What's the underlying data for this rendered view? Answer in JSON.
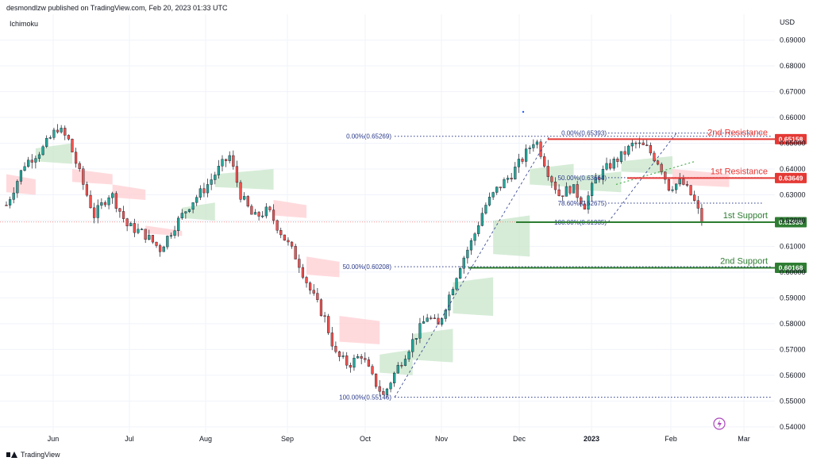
{
  "header": {
    "publisher": "desmondlzw published on TradingView.com, Feb 20, 2023 01:33 UTC",
    "indicator": "Ichimoku",
    "currency": "USD",
    "footer_brand": "TradingView"
  },
  "colors": {
    "up": "#26a69a",
    "down": "#ef5350",
    "wick": "#131722",
    "resistance": "#e53935",
    "support": "#2e7d32",
    "fib": "#2a3a8a",
    "cloud_bull": "#c8e6c9",
    "cloud_bear": "#ffcdd2",
    "grid": "#f0f3fa"
  },
  "chart_data": {
    "type": "candlestick",
    "x_ticks": [
      "Jun",
      "Jul",
      "Aug",
      "Sep",
      "Oct",
      "Nov",
      "Dec",
      "2023",
      "Feb",
      "Mar"
    ],
    "y_axis": {
      "min": 0.5375,
      "max": 0.7,
      "ticks": [
        0.69,
        0.68,
        0.67,
        0.66,
        0.65,
        0.64,
        0.63,
        0.62,
        0.61,
        0.6,
        0.59,
        0.58,
        0.57,
        0.56,
        0.55,
        0.54
      ]
    },
    "y_tick_labels": [
      "0.69000",
      "0.68000",
      "0.67000",
      "0.66000",
      "0.65000",
      "0.64000",
      "0.63000",
      "0.62000",
      "0.61000",
      "0.60000",
      "0.59000",
      "0.58000",
      "0.57000",
      "0.56000",
      "0.55000",
      "0.54000"
    ],
    "price_anchors": [
      {
        "t": 0,
        "p": 0.626
      },
      {
        "t": 1,
        "p": 0.642
      },
      {
        "t": 2,
        "p": 0.648
      },
      {
        "t": 2.8,
        "p": 0.656
      },
      {
        "t": 3.4,
        "p": 0.651
      },
      {
        "t": 4.2,
        "p": 0.634
      },
      {
        "t": 4.8,
        "p": 0.622
      },
      {
        "t": 5.7,
        "p": 0.631
      },
      {
        "t": 6.6,
        "p": 0.618
      },
      {
        "t": 7.5,
        "p": 0.615
      },
      {
        "t": 8.4,
        "p": 0.609
      },
      {
        "t": 9.2,
        "p": 0.618
      },
      {
        "t": 10.1,
        "p": 0.627
      },
      {
        "t": 10.9,
        "p": 0.633
      },
      {
        "t": 11.7,
        "p": 0.641
      },
      {
        "t": 12.2,
        "p": 0.645
      },
      {
        "t": 12.8,
        "p": 0.63
      },
      {
        "t": 13.5,
        "p": 0.621
      },
      {
        "t": 14.3,
        "p": 0.624
      },
      {
        "t": 15.2,
        "p": 0.613
      },
      {
        "t": 15.9,
        "p": 0.605
      },
      {
        "t": 16.6,
        "p": 0.593
      },
      {
        "t": 17.4,
        "p": 0.582
      },
      {
        "t": 18.0,
        "p": 0.568
      },
      {
        "t": 18.7,
        "p": 0.564
      },
      {
        "t": 19.4,
        "p": 0.568
      },
      {
        "t": 20.0,
        "p": 0.559
      },
      {
        "t": 20.6,
        "p": 0.552
      },
      {
        "t": 21.3,
        "p": 0.562
      },
      {
        "t": 22.1,
        "p": 0.572
      },
      {
        "t": 23.0,
        "p": 0.583
      },
      {
        "t": 23.6,
        "p": 0.579
      },
      {
        "t": 24.2,
        "p": 0.591
      },
      {
        "t": 24.8,
        "p": 0.603
      },
      {
        "t": 25.5,
        "p": 0.613
      },
      {
        "t": 26.1,
        "p": 0.625
      },
      {
        "t": 26.8,
        "p": 0.632
      },
      {
        "t": 27.6,
        "p": 0.638
      },
      {
        "t": 28.3,
        "p": 0.645
      },
      {
        "t": 28.9,
        "p": 0.652
      },
      {
        "t": 29.6,
        "p": 0.639
      },
      {
        "t": 30.2,
        "p": 0.63
      },
      {
        "t": 30.9,
        "p": 0.633
      },
      {
        "t": 31.6,
        "p": 0.626
      },
      {
        "t": 32.2,
        "p": 0.636
      },
      {
        "t": 32.9,
        "p": 0.641
      },
      {
        "t": 33.6,
        "p": 0.645
      },
      {
        "t": 34.3,
        "p": 0.65
      },
      {
        "t": 35.0,
        "p": 0.648
      },
      {
        "t": 35.7,
        "p": 0.642
      },
      {
        "t": 36.2,
        "p": 0.633
      },
      {
        "t": 36.9,
        "p": 0.635
      },
      {
        "t": 37.5,
        "p": 0.629
      },
      {
        "t": 38.0,
        "p": 0.62
      }
    ],
    "cloud_segments": [
      {
        "t0": 0.0,
        "t1": 1.6,
        "a": 0.638,
        "b": 0.63,
        "kind": "bear"
      },
      {
        "t0": 1.6,
        "t1": 3.6,
        "a": 0.648,
        "b": 0.642,
        "kind": "bull"
      },
      {
        "t0": 3.6,
        "t1": 5.8,
        "a": 0.64,
        "b": 0.634,
        "kind": "bear"
      },
      {
        "t0": 5.8,
        "t1": 7.6,
        "a": 0.634,
        "b": 0.628,
        "kind": "bear"
      },
      {
        "t0": 7.6,
        "t1": 9.6,
        "a": 0.618,
        "b": 0.614,
        "kind": "bear"
      },
      {
        "t0": 9.6,
        "t1": 11.4,
        "a": 0.625,
        "b": 0.62,
        "kind": "bull"
      },
      {
        "t0": 11.4,
        "t1": 14.6,
        "a": 0.638,
        "b": 0.632,
        "kind": "bull"
      },
      {
        "t0": 14.6,
        "t1": 16.4,
        "a": 0.628,
        "b": 0.621,
        "kind": "bear"
      },
      {
        "t0": 16.4,
        "t1": 18.2,
        "a": 0.606,
        "b": 0.598,
        "kind": "bear"
      },
      {
        "t0": 18.2,
        "t1": 20.4,
        "a": 0.583,
        "b": 0.572,
        "kind": "bear"
      },
      {
        "t0": 20.4,
        "t1": 22.2,
        "a": 0.568,
        "b": 0.56,
        "kind": "bull"
      },
      {
        "t0": 22.2,
        "t1": 24.4,
        "a": 0.576,
        "b": 0.565,
        "kind": "bull"
      },
      {
        "t0": 24.4,
        "t1": 26.6,
        "a": 0.596,
        "b": 0.583,
        "kind": "bull"
      },
      {
        "t0": 26.6,
        "t1": 28.6,
        "a": 0.62,
        "b": 0.606,
        "kind": "bull"
      },
      {
        "t0": 28.6,
        "t1": 31.0,
        "a": 0.64,
        "b": 0.633,
        "kind": "bull"
      },
      {
        "t0": 31.0,
        "t1": 33.6,
        "a": 0.637,
        "b": 0.631,
        "kind": "bull"
      },
      {
        "t0": 33.6,
        "t1": 36.4,
        "a": 0.643,
        "b": 0.638,
        "kind": "bull"
      },
      {
        "t0": 36.4,
        "t1": 39.5,
        "a": 0.64,
        "b": 0.633,
        "kind": "bear"
      }
    ],
    "fib_left": [
      {
        "label": "0.00%(0.65269)",
        "price": 0.65269
      },
      {
        "label": "50.00%(0.60208)",
        "price": 0.60208
      },
      {
        "label": "100.00%(0.55146)",
        "price": 0.55146
      }
    ],
    "fib_right": [
      {
        "label": "0.00%(0.65393)",
        "price": 0.65393
      },
      {
        "label": "50.00%(0.63664)",
        "price": 0.63664
      },
      {
        "label": "78.60%(0.62675)",
        "price": 0.62675
      },
      {
        "label": "100.00%(0.61935)",
        "price": 0.61935
      }
    ],
    "levels": [
      {
        "name": "2nd Resistance",
        "price": 0.65158,
        "badge": "0.65158",
        "kind": "resistance"
      },
      {
        "name": "1st Resistance",
        "price": 0.63649,
        "badge": "0.63649",
        "kind": "resistance"
      },
      {
        "name": "1st Support",
        "price": 0.61936,
        "badge": "0.61936",
        "kind": "support"
      },
      {
        "name": "2nd Support",
        "price": 0.60168,
        "badge": "0.60168",
        "kind": "support"
      }
    ]
  }
}
